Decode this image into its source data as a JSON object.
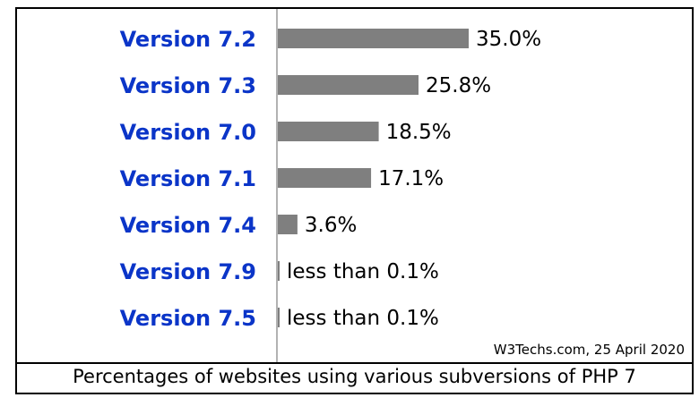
{
  "chart_data": {
    "type": "bar",
    "orientation": "horizontal",
    "categories": [
      "Version 7.2",
      "Version 7.3",
      "Version 7.0",
      "Version 7.1",
      "Version 7.4",
      "Version 7.9",
      "Version 7.5"
    ],
    "values": [
      35.0,
      25.8,
      18.5,
      17.1,
      3.6,
      0.05,
      0.05
    ],
    "value_labels": [
      "35.0%",
      "25.8%",
      "18.5%",
      "17.1%",
      "3.6%",
      "less than 0.1%",
      "less than 0.1%"
    ],
    "xlim": [
      0,
      35
    ],
    "credit": "W3Techs.com, 25 April 2020",
    "caption": "Percentages of websites using various subversions of PHP 7",
    "colors": {
      "bar": "#7f7f7f",
      "category_label": "#0b35c8",
      "axis": "#999999"
    }
  }
}
